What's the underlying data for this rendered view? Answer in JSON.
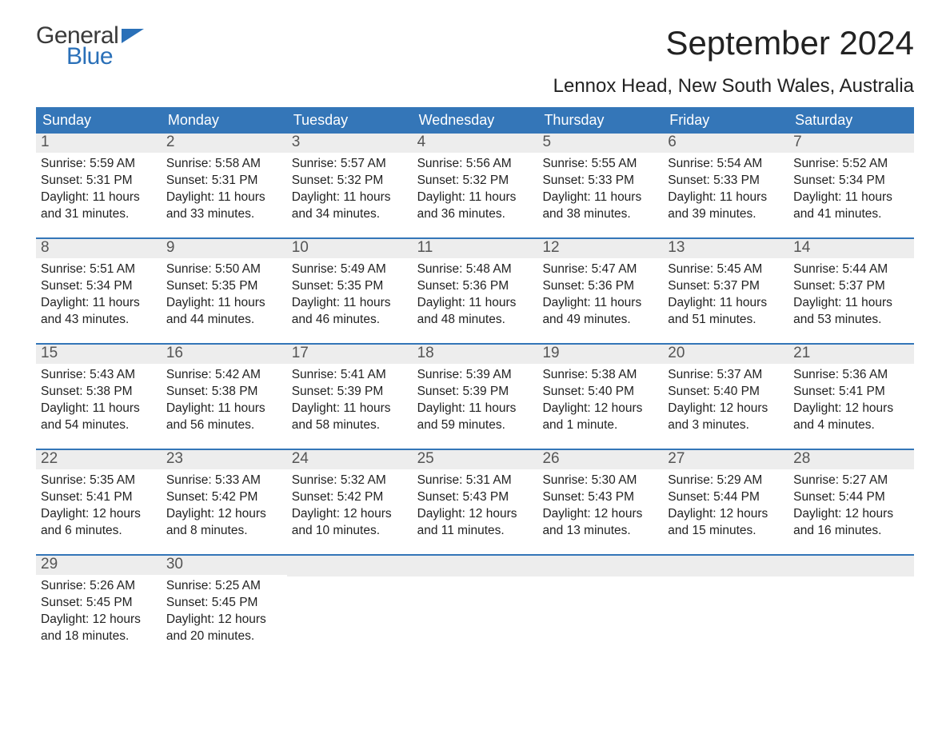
{
  "brand": {
    "word1": "General",
    "word2": "Blue"
  },
  "title": "September 2024",
  "location": "Lennox Head, New South Wales, Australia",
  "colors": {
    "header_bg": "#3476b8",
    "header_text": "#ffffff",
    "daynum_bg": "#ededed",
    "daynum_text": "#555555",
    "body_text": "#222222",
    "rule": "#3476b8",
    "page_bg": "#ffffff",
    "logo_accent": "#2a70b8"
  },
  "day_labels": [
    "Sunday",
    "Monday",
    "Tuesday",
    "Wednesday",
    "Thursday",
    "Friday",
    "Saturday"
  ],
  "weeks": [
    [
      {
        "n": "1",
        "sunrise": "Sunrise: 5:59 AM",
        "sunset": "Sunset: 5:31 PM",
        "daylight": "Daylight: 11 hours and 31 minutes."
      },
      {
        "n": "2",
        "sunrise": "Sunrise: 5:58 AM",
        "sunset": "Sunset: 5:31 PM",
        "daylight": "Daylight: 11 hours and 33 minutes."
      },
      {
        "n": "3",
        "sunrise": "Sunrise: 5:57 AM",
        "sunset": "Sunset: 5:32 PM",
        "daylight": "Daylight: 11 hours and 34 minutes."
      },
      {
        "n": "4",
        "sunrise": "Sunrise: 5:56 AM",
        "sunset": "Sunset: 5:32 PM",
        "daylight": "Daylight: 11 hours and 36 minutes."
      },
      {
        "n": "5",
        "sunrise": "Sunrise: 5:55 AM",
        "sunset": "Sunset: 5:33 PM",
        "daylight": "Daylight: 11 hours and 38 minutes."
      },
      {
        "n": "6",
        "sunrise": "Sunrise: 5:54 AM",
        "sunset": "Sunset: 5:33 PM",
        "daylight": "Daylight: 11 hours and 39 minutes."
      },
      {
        "n": "7",
        "sunrise": "Sunrise: 5:52 AM",
        "sunset": "Sunset: 5:34 PM",
        "daylight": "Daylight: 11 hours and 41 minutes."
      }
    ],
    [
      {
        "n": "8",
        "sunrise": "Sunrise: 5:51 AM",
        "sunset": "Sunset: 5:34 PM",
        "daylight": "Daylight: 11 hours and 43 minutes."
      },
      {
        "n": "9",
        "sunrise": "Sunrise: 5:50 AM",
        "sunset": "Sunset: 5:35 PM",
        "daylight": "Daylight: 11 hours and 44 minutes."
      },
      {
        "n": "10",
        "sunrise": "Sunrise: 5:49 AM",
        "sunset": "Sunset: 5:35 PM",
        "daylight": "Daylight: 11 hours and 46 minutes."
      },
      {
        "n": "11",
        "sunrise": "Sunrise: 5:48 AM",
        "sunset": "Sunset: 5:36 PM",
        "daylight": "Daylight: 11 hours and 48 minutes."
      },
      {
        "n": "12",
        "sunrise": "Sunrise: 5:47 AM",
        "sunset": "Sunset: 5:36 PM",
        "daylight": "Daylight: 11 hours and 49 minutes."
      },
      {
        "n": "13",
        "sunrise": "Sunrise: 5:45 AM",
        "sunset": "Sunset: 5:37 PM",
        "daylight": "Daylight: 11 hours and 51 minutes."
      },
      {
        "n": "14",
        "sunrise": "Sunrise: 5:44 AM",
        "sunset": "Sunset: 5:37 PM",
        "daylight": "Daylight: 11 hours and 53 minutes."
      }
    ],
    [
      {
        "n": "15",
        "sunrise": "Sunrise: 5:43 AM",
        "sunset": "Sunset: 5:38 PM",
        "daylight": "Daylight: 11 hours and 54 minutes."
      },
      {
        "n": "16",
        "sunrise": "Sunrise: 5:42 AM",
        "sunset": "Sunset: 5:38 PM",
        "daylight": "Daylight: 11 hours and 56 minutes."
      },
      {
        "n": "17",
        "sunrise": "Sunrise: 5:41 AM",
        "sunset": "Sunset: 5:39 PM",
        "daylight": "Daylight: 11 hours and 58 minutes."
      },
      {
        "n": "18",
        "sunrise": "Sunrise: 5:39 AM",
        "sunset": "Sunset: 5:39 PM",
        "daylight": "Daylight: 11 hours and 59 minutes."
      },
      {
        "n": "19",
        "sunrise": "Sunrise: 5:38 AM",
        "sunset": "Sunset: 5:40 PM",
        "daylight": "Daylight: 12 hours and 1 minute."
      },
      {
        "n": "20",
        "sunrise": "Sunrise: 5:37 AM",
        "sunset": "Sunset: 5:40 PM",
        "daylight": "Daylight: 12 hours and 3 minutes."
      },
      {
        "n": "21",
        "sunrise": "Sunrise: 5:36 AM",
        "sunset": "Sunset: 5:41 PM",
        "daylight": "Daylight: 12 hours and 4 minutes."
      }
    ],
    [
      {
        "n": "22",
        "sunrise": "Sunrise: 5:35 AM",
        "sunset": "Sunset: 5:41 PM",
        "daylight": "Daylight: 12 hours and 6 minutes."
      },
      {
        "n": "23",
        "sunrise": "Sunrise: 5:33 AM",
        "sunset": "Sunset: 5:42 PM",
        "daylight": "Daylight: 12 hours and 8 minutes."
      },
      {
        "n": "24",
        "sunrise": "Sunrise: 5:32 AM",
        "sunset": "Sunset: 5:42 PM",
        "daylight": "Daylight: 12 hours and 10 minutes."
      },
      {
        "n": "25",
        "sunrise": "Sunrise: 5:31 AM",
        "sunset": "Sunset: 5:43 PM",
        "daylight": "Daylight: 12 hours and 11 minutes."
      },
      {
        "n": "26",
        "sunrise": "Sunrise: 5:30 AM",
        "sunset": "Sunset: 5:43 PM",
        "daylight": "Daylight: 12 hours and 13 minutes."
      },
      {
        "n": "27",
        "sunrise": "Sunrise: 5:29 AM",
        "sunset": "Sunset: 5:44 PM",
        "daylight": "Daylight: 12 hours and 15 minutes."
      },
      {
        "n": "28",
        "sunrise": "Sunrise: 5:27 AM",
        "sunset": "Sunset: 5:44 PM",
        "daylight": "Daylight: 12 hours and 16 minutes."
      }
    ],
    [
      {
        "n": "29",
        "sunrise": "Sunrise: 5:26 AM",
        "sunset": "Sunset: 5:45 PM",
        "daylight": "Daylight: 12 hours and 18 minutes."
      },
      {
        "n": "30",
        "sunrise": "Sunrise: 5:25 AM",
        "sunset": "Sunset: 5:45 PM",
        "daylight": "Daylight: 12 hours and 20 minutes."
      },
      {
        "empty": true
      },
      {
        "empty": true
      },
      {
        "empty": true
      },
      {
        "empty": true
      },
      {
        "empty": true
      }
    ]
  ]
}
